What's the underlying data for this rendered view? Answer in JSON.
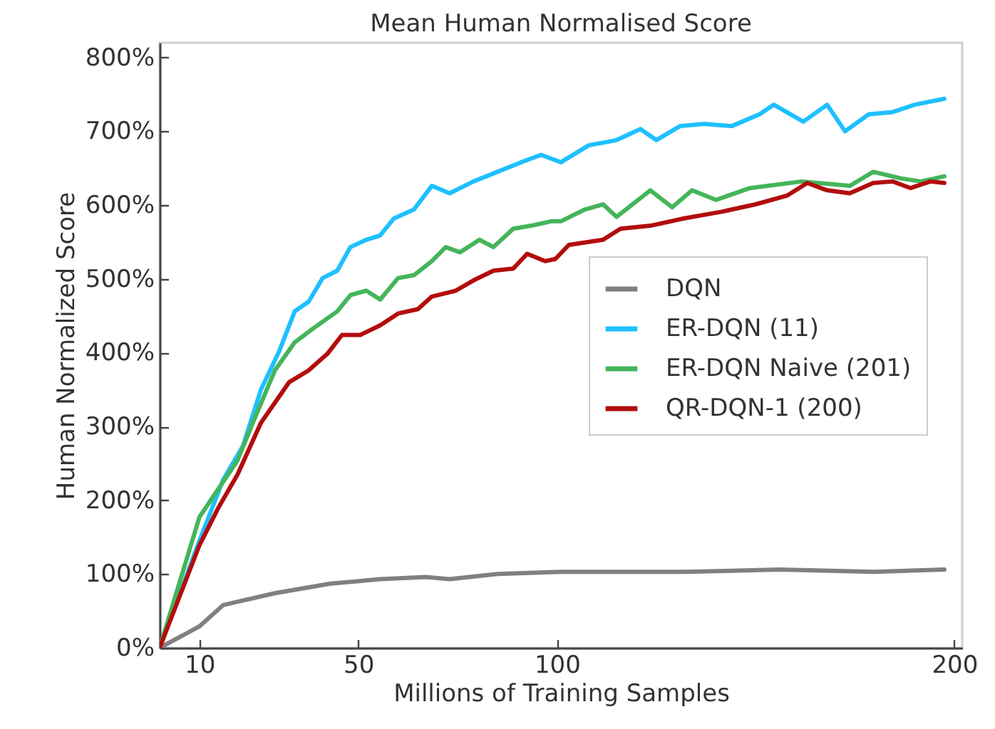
{
  "chart_data": {
    "type": "line",
    "title": "Mean Human Normalised Score",
    "xlabel": "Millions of Training Samples",
    "ylabel": "Human Normalized Score",
    "xlim": [
      0,
      202
    ],
    "ylim": [
      0,
      820
    ],
    "xticks": [
      10,
      50,
      100,
      200
    ],
    "yticks": [
      {
        "value": 0,
        "label": "0%"
      },
      {
        "value": 100,
        "label": "100%"
      },
      {
        "value": 200,
        "label": "200%"
      },
      {
        "value": 300,
        "label": "300%"
      },
      {
        "value": 400,
        "label": "400%"
      },
      {
        "value": 500,
        "label": "500%"
      },
      {
        "value": 600,
        "label": "600%"
      },
      {
        "value": 700,
        "label": "700%"
      },
      {
        "value": 800,
        "label": "800%"
      }
    ],
    "grid": false,
    "legend": "right",
    "line_style": "solid",
    "series": [
      {
        "name": "DQN",
        "color": "#808080",
        "x": [
          0,
          10,
          16,
          29,
          43,
          55.5,
          67,
          73,
          85,
          101,
          132,
          156,
          180,
          197.5
        ],
        "values": [
          0,
          29,
          58,
          74,
          87,
          93,
          96,
          93,
          100,
          103,
          103,
          106,
          103,
          106
        ]
      },
      {
        "name": "ER-DQN (11)",
        "color": "#1ec0ff",
        "x": [
          0,
          10,
          16,
          21,
          25.5,
          30,
          34,
          37.5,
          41,
          44.7,
          48,
          52,
          55.5,
          59,
          64,
          68.5,
          73,
          79,
          85,
          91,
          96,
          101,
          108,
          115,
          121,
          125,
          131,
          137,
          144,
          151,
          154.6,
          162,
          168,
          172.5,
          178.5,
          184.5,
          190,
          197.5
        ],
        "values": [
          0,
          145,
          228,
          274,
          350,
          401,
          456,
          469,
          501,
          511,
          543,
          553,
          559,
          582,
          594,
          626,
          616,
          632,
          645,
          658,
          668,
          658,
          681,
          688,
          703,
          688,
          707,
          710,
          707,
          723,
          736,
          713,
          736,
          700,
          723,
          726,
          736,
          744
        ]
      },
      {
        "name": "ER-DQN Naive (201)",
        "color": "#44b55a",
        "x": [
          0,
          10,
          13.6,
          19.6,
          24,
          29,
          34,
          38.7,
          44.7,
          48,
          52,
          55.5,
          60,
          64,
          68.5,
          72,
          75.6,
          80.5,
          84,
          89,
          93.5,
          98.5,
          101,
          107,
          111.6,
          115,
          123.5,
          129,
          134,
          140,
          148.6,
          161.6,
          173.7,
          179.6,
          186.7,
          191.6,
          197.5
        ],
        "values": [
          0,
          177,
          206,
          254,
          312,
          376,
          414,
          433,
          456,
          478,
          484,
          472,
          501,
          505,
          524,
          543,
          536,
          553,
          543,
          568,
          572,
          578,
          578,
          594,
          601,
          584,
          620,
          597,
          620,
          607,
          623,
          632,
          626,
          645,
          636,
          632,
          639
        ]
      },
      {
        "name": "QR-DQN-1 (200)",
        "color": "#b30d0d",
        "x": [
          0,
          10,
          14.7,
          19.6,
          25.5,
          32.6,
          37.5,
          42.3,
          45.9,
          50.5,
          55.5,
          60,
          65,
          68.5,
          74.5,
          79,
          84,
          89,
          92.5,
          97,
          99.6,
          103,
          111.6,
          116,
          123.5,
          132,
          141.5,
          150,
          158,
          163,
          168,
          173.7,
          179.6,
          184.5,
          189,
          194,
          197.5
        ],
        "values": [
          0,
          139,
          189,
          235,
          305,
          360,
          376,
          399,
          424,
          424,
          437,
          453,
          459,
          476,
          484,
          498,
          511,
          514,
          534,
          524,
          527,
          546,
          553,
          568,
          572,
          582,
          591,
          601,
          613,
          630,
          620,
          616,
          630,
          632,
          623,
          632,
          630
        ]
      }
    ]
  }
}
